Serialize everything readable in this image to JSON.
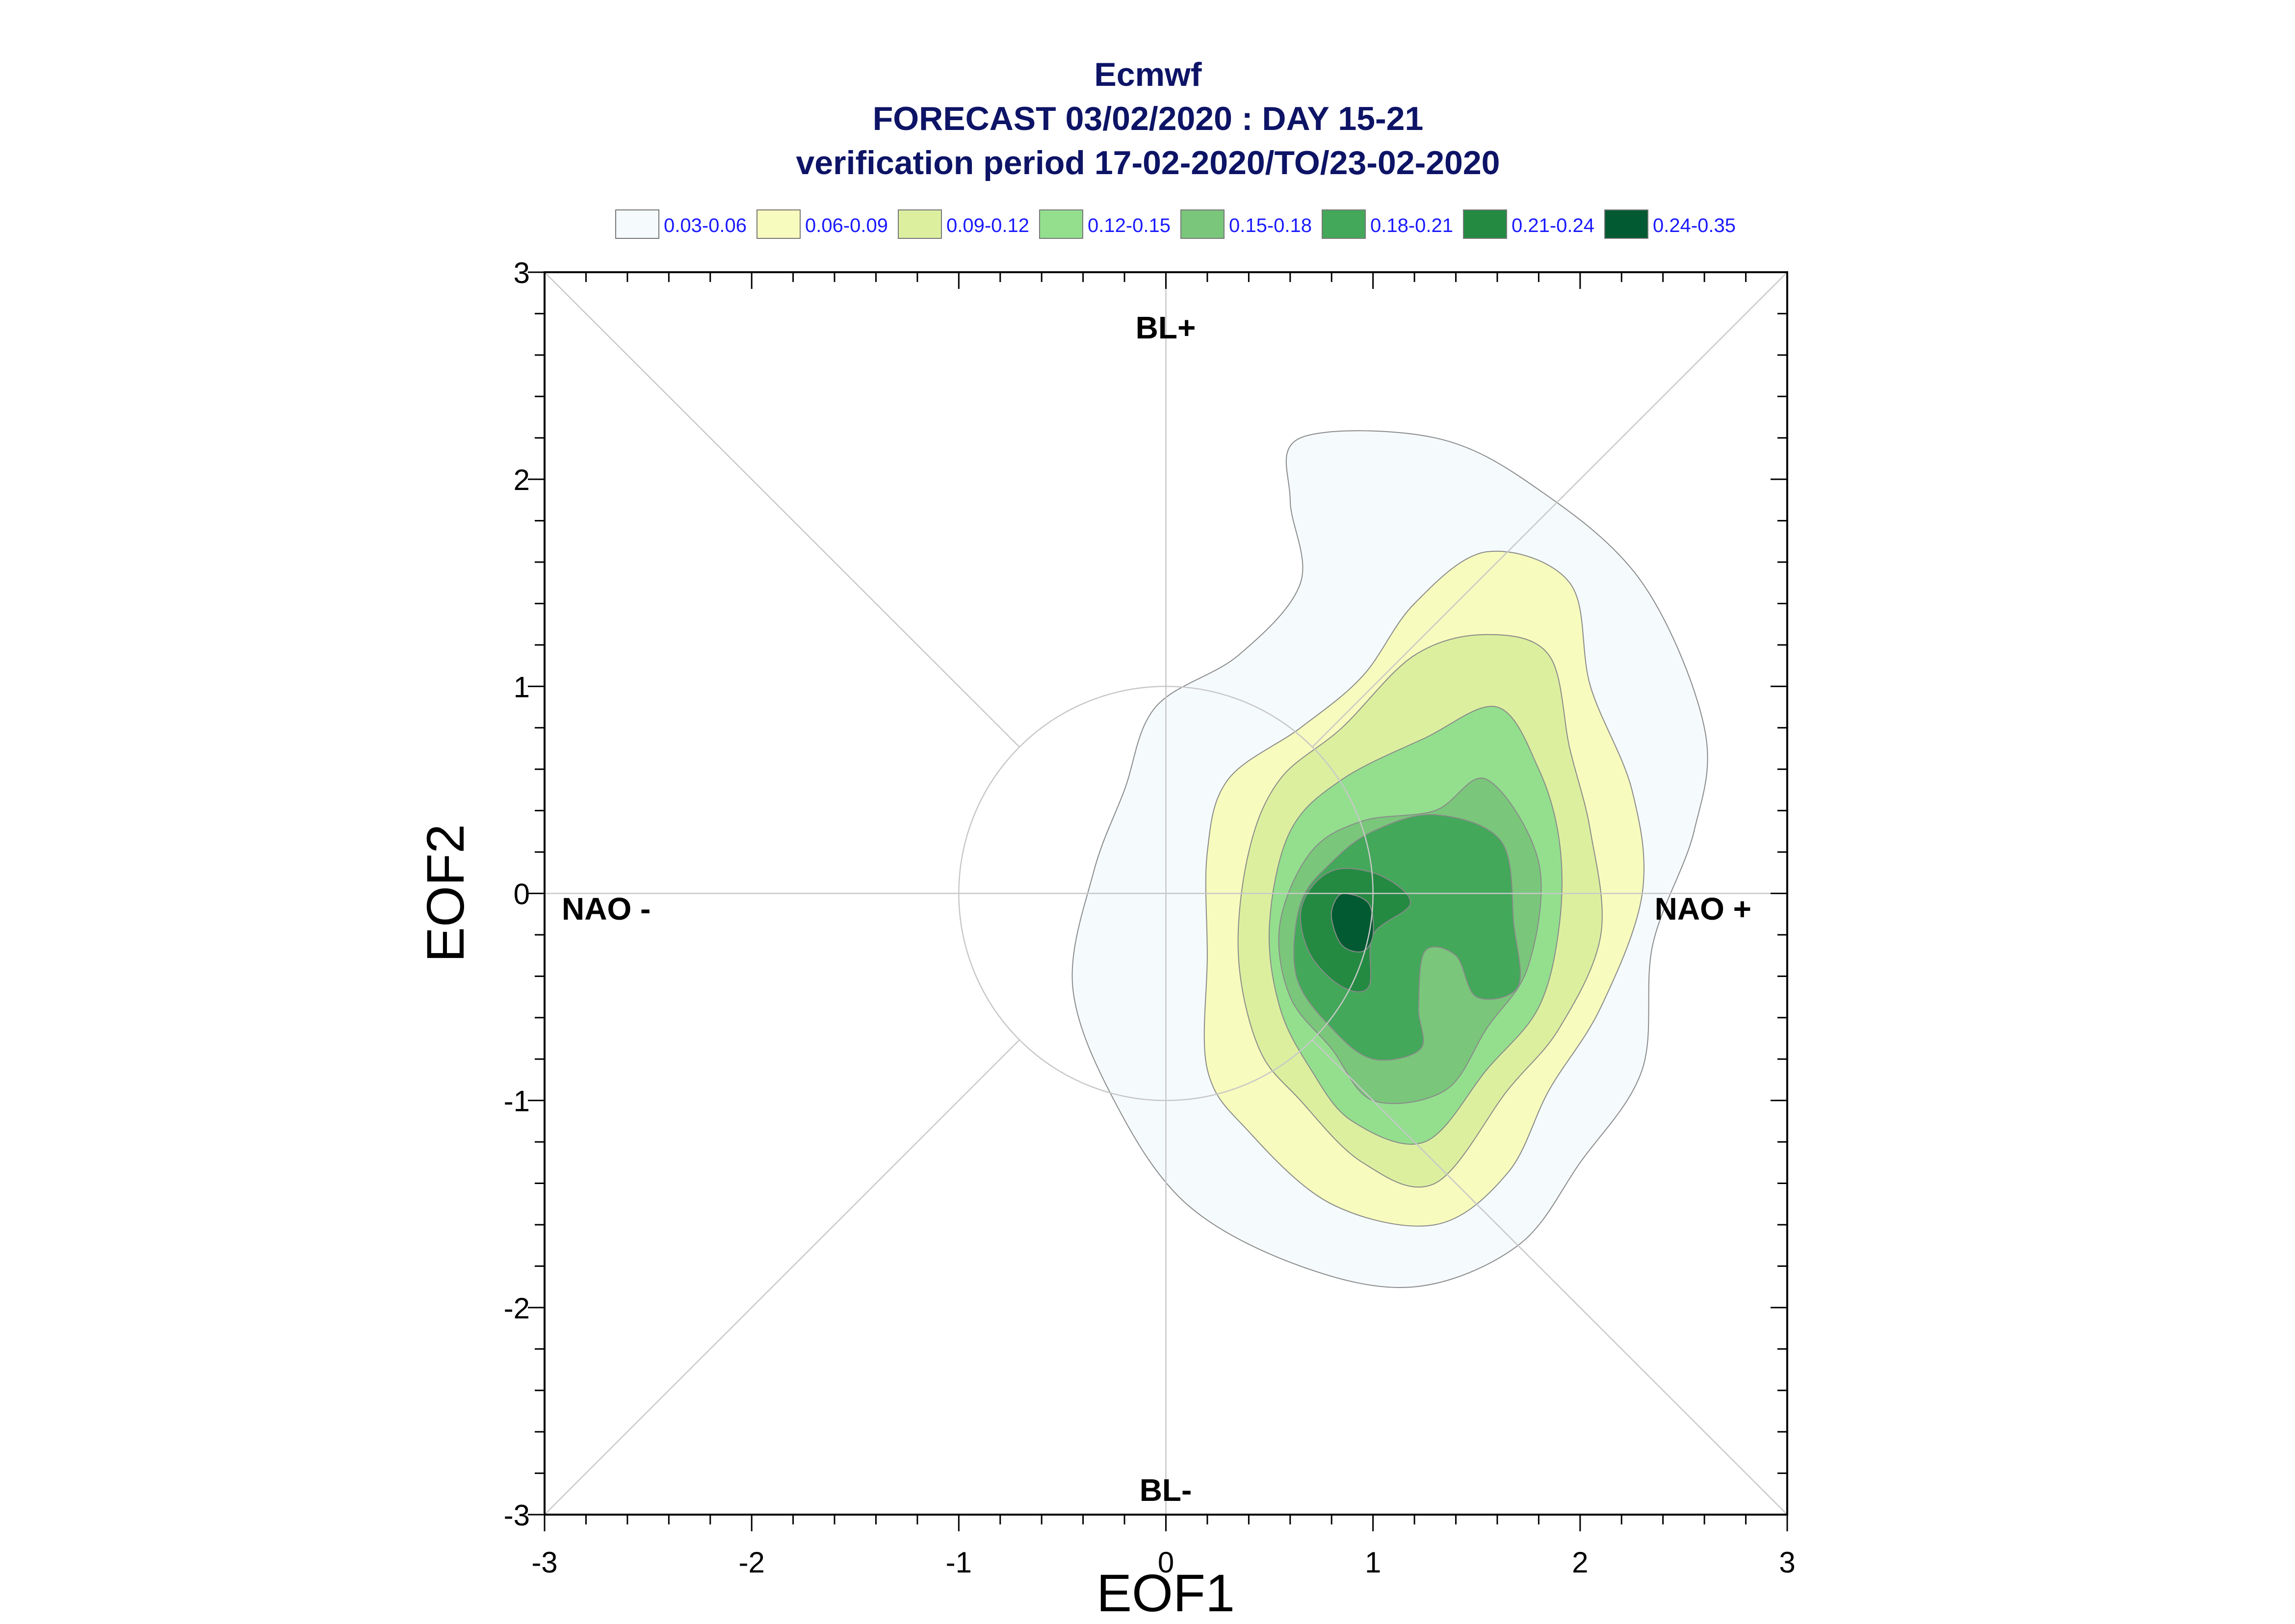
{
  "chart_data": {
    "type": "contour",
    "title": "Ecmwf",
    "subtitle": "FORECAST 03/02/2020 : DAY 15-21",
    "subtitle2": "verification period 17-02-2020/TO/23-02-2020",
    "xlabel": "EOF1",
    "ylabel": "EOF2",
    "xlim": [
      -3,
      3
    ],
    "ylim": [
      -3,
      3
    ],
    "xticks": [
      "-3",
      "-2",
      "-1",
      "0",
      "1",
      "2",
      "3"
    ],
    "yticks": [
      "-3",
      "-2",
      "-1",
      "0",
      "1",
      "2",
      "3"
    ],
    "grid": false,
    "legend_position": "top",
    "regions": {
      "top": "BL+",
      "bottom": "BL-",
      "left": "NAO -",
      "right": "NAO +"
    },
    "reference_circle_radius": 1,
    "levels": [
      {
        "label": "0.03-0.06",
        "color": "#f5fafd"
      },
      {
        "label": "0.06-0.09",
        "color": "#f7fbbd"
      },
      {
        "label": "0.09-0.12",
        "color": "#dcef9f"
      },
      {
        "label": "0.12-0.15",
        "color": "#93df8e"
      },
      {
        "label": "0.15-0.18",
        "color": "#7ac67b"
      },
      {
        "label": "0.18-0.21",
        "color": "#43a85a"
      },
      {
        "label": "0.21-0.24",
        "color": "#248a42"
      },
      {
        "label": "0.24-0.35",
        "color": "#015a32"
      }
    ],
    "contours": [
      {
        "level": 0,
        "points": [
          [
            0.65,
            2.2
          ],
          [
            1.3,
            2.2
          ],
          [
            1.8,
            1.95
          ],
          [
            2.3,
            1.5
          ],
          [
            2.6,
            0.8
          ],
          [
            2.55,
            0.3
          ],
          [
            2.35,
            -0.25
          ],
          [
            2.3,
            -0.85
          ],
          [
            2.0,
            -1.3
          ],
          [
            1.7,
            -1.7
          ],
          [
            1.2,
            -1.9
          ],
          [
            0.65,
            -1.8
          ],
          [
            0.1,
            -1.5
          ],
          [
            -0.25,
            -1.0
          ],
          [
            -0.45,
            -0.45
          ],
          [
            -0.35,
            0.1
          ],
          [
            -0.2,
            0.5
          ],
          [
            -0.05,
            0.9
          ],
          [
            0.35,
            1.15
          ],
          [
            0.65,
            1.5
          ],
          [
            0.6,
            1.9
          ]
        ]
      },
      {
        "level": 1,
        "points": [
          [
            1.55,
            1.65
          ],
          [
            1.95,
            1.5
          ],
          [
            2.05,
            1.0
          ],
          [
            2.25,
            0.5
          ],
          [
            2.3,
            0.0
          ],
          [
            2.1,
            -0.55
          ],
          [
            1.85,
            -0.95
          ],
          [
            1.65,
            -1.35
          ],
          [
            1.3,
            -1.6
          ],
          [
            0.8,
            -1.5
          ],
          [
            0.4,
            -1.15
          ],
          [
            0.2,
            -0.85
          ],
          [
            0.2,
            -0.3
          ],
          [
            0.2,
            0.2
          ],
          [
            0.3,
            0.55
          ],
          [
            0.65,
            0.8
          ],
          [
            0.95,
            1.05
          ],
          [
            1.2,
            1.4
          ]
        ]
      },
      {
        "level": 2,
        "points": [
          [
            1.55,
            1.25
          ],
          [
            1.85,
            1.15
          ],
          [
            1.95,
            0.7
          ],
          [
            2.05,
            0.3
          ],
          [
            2.1,
            -0.2
          ],
          [
            1.9,
            -0.65
          ],
          [
            1.65,
            -0.95
          ],
          [
            1.3,
            -1.4
          ],
          [
            0.95,
            -1.3
          ],
          [
            0.65,
            -1.0
          ],
          [
            0.45,
            -0.75
          ],
          [
            0.35,
            -0.3
          ],
          [
            0.4,
            0.2
          ],
          [
            0.55,
            0.55
          ],
          [
            0.85,
            0.8
          ],
          [
            1.2,
            1.15
          ]
        ]
      },
      {
        "level": 3,
        "points": [
          [
            1.6,
            0.9
          ],
          [
            1.8,
            0.6
          ],
          [
            1.9,
            0.25
          ],
          [
            1.9,
            -0.15
          ],
          [
            1.8,
            -0.55
          ],
          [
            1.55,
            -0.85
          ],
          [
            1.25,
            -1.2
          ],
          [
            0.9,
            -1.1
          ],
          [
            0.7,
            -0.85
          ],
          [
            0.55,
            -0.55
          ],
          [
            0.5,
            -0.15
          ],
          [
            0.6,
            0.3
          ],
          [
            0.85,
            0.55
          ],
          [
            1.25,
            0.75
          ]
        ]
      },
      {
        "level": 4,
        "points": [
          [
            1.55,
            0.55
          ],
          [
            1.8,
            0.15
          ],
          [
            1.75,
            -0.35
          ],
          [
            1.55,
            -0.65
          ],
          [
            1.35,
            -0.95
          ],
          [
            1.0,
            -1.0
          ],
          [
            0.8,
            -0.75
          ],
          [
            0.6,
            -0.5
          ],
          [
            0.55,
            -0.15
          ],
          [
            0.7,
            0.2
          ],
          [
            0.95,
            0.35
          ],
          [
            1.3,
            0.4
          ]
        ]
      },
      {
        "level": 5,
        "points": [
          [
            1.0,
            0.3
          ],
          [
            1.3,
            0.38
          ],
          [
            1.62,
            0.25
          ],
          [
            1.68,
            -0.15
          ],
          [
            1.7,
            -0.45
          ],
          [
            1.5,
            -0.5
          ],
          [
            1.4,
            -0.3
          ],
          [
            1.25,
            -0.28
          ],
          [
            1.22,
            -0.55
          ],
          [
            1.23,
            -0.75
          ],
          [
            1.0,
            -0.8
          ],
          [
            0.8,
            -0.65
          ],
          [
            0.63,
            -0.4
          ],
          [
            0.65,
            -0.05
          ],
          [
            0.8,
            0.15
          ]
        ]
      },
      {
        "level": 6,
        "points": [
          [
            0.85,
            0.12
          ],
          [
            1.05,
            0.08
          ],
          [
            1.18,
            -0.05
          ],
          [
            1.0,
            -0.2
          ],
          [
            0.98,
            -0.45
          ],
          [
            0.85,
            -0.45
          ],
          [
            0.7,
            -0.3
          ],
          [
            0.65,
            -0.1
          ],
          [
            0.72,
            0.05
          ]
        ]
      },
      {
        "level": 7,
        "points": [
          [
            0.87,
            0.0
          ],
          [
            0.98,
            -0.05
          ],
          [
            1.0,
            -0.2
          ],
          [
            0.95,
            -0.28
          ],
          [
            0.85,
            -0.25
          ],
          [
            0.8,
            -0.12
          ],
          [
            0.82,
            -0.03
          ]
        ]
      }
    ]
  }
}
